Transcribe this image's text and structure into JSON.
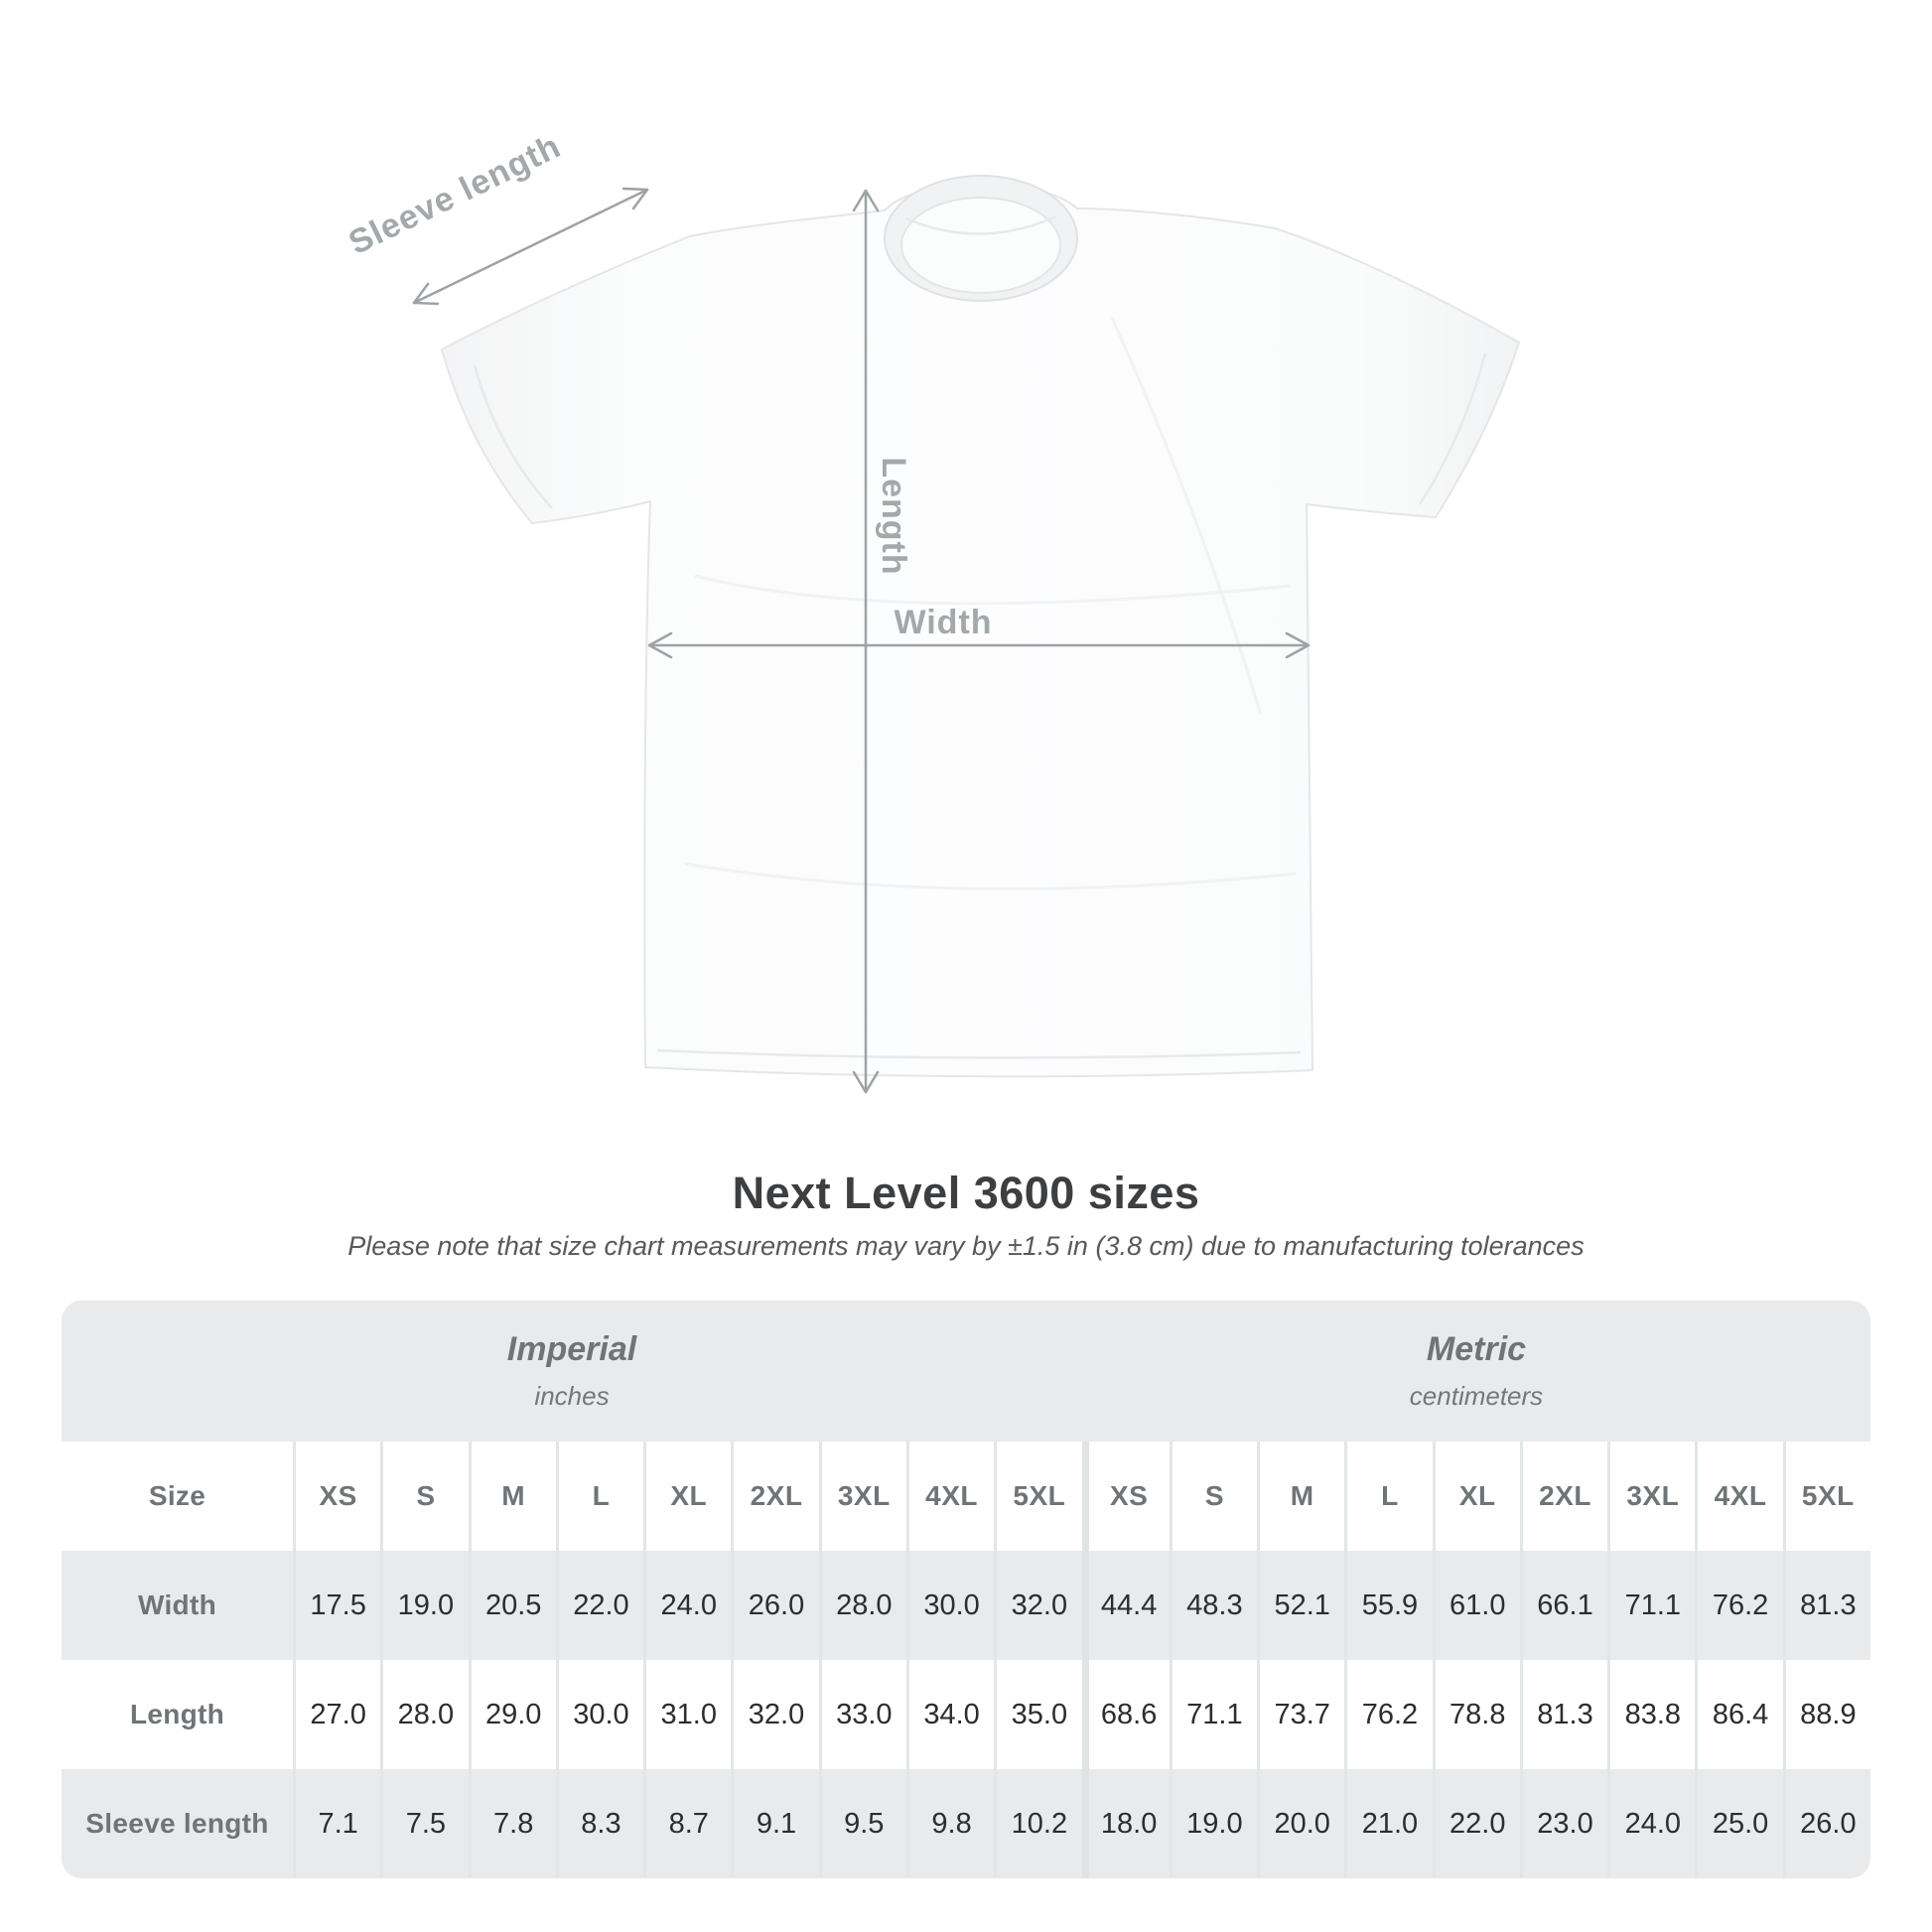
{
  "title": "Next Level 3600 sizes",
  "subtitle": "Please note that size chart measurements may vary by ±1.5 in (3.8 cm) due to manufacturing tolerances",
  "diagram": {
    "labels": {
      "sleeve_length": "Sleeve length",
      "length": "Length",
      "width": "Width"
    }
  },
  "table": {
    "unit_groups": [
      {
        "label": "Imperial",
        "sublabel": "inches"
      },
      {
        "label": "Metric",
        "sublabel": "centimeters"
      }
    ],
    "size_header": "Size",
    "sizes": [
      "XS",
      "S",
      "M",
      "L",
      "XL",
      "2XL",
      "3XL",
      "4XL",
      "5XL"
    ],
    "rows": [
      {
        "label": "Width",
        "imperial": [
          "17.5",
          "19.0",
          "20.5",
          "22.0",
          "24.0",
          "26.0",
          "28.0",
          "30.0",
          "32.0"
        ],
        "metric": [
          "44.4",
          "48.3",
          "52.1",
          "55.9",
          "61.0",
          "66.1",
          "71.1",
          "76.2",
          "81.3"
        ]
      },
      {
        "label": "Length",
        "imperial": [
          "27.0",
          "28.0",
          "29.0",
          "30.0",
          "31.0",
          "32.0",
          "33.0",
          "34.0",
          "35.0"
        ],
        "metric": [
          "68.6",
          "71.1",
          "73.7",
          "76.2",
          "78.8",
          "81.3",
          "83.8",
          "86.4",
          "88.9"
        ]
      },
      {
        "label": "Sleeve length",
        "imperial": [
          "7.1",
          "7.5",
          "7.8",
          "8.3",
          "8.7",
          "9.1",
          "9.5",
          "9.8",
          "10.2"
        ],
        "metric": [
          "18.0",
          "19.0",
          "20.0",
          "21.0",
          "22.0",
          "23.0",
          "24.0",
          "25.0",
          "26.0"
        ]
      }
    ]
  },
  "chart_data": {
    "type": "table",
    "title": "Next Level 3600 sizes",
    "columns": [
      "Size",
      "XS",
      "S",
      "M",
      "L",
      "XL",
      "2XL",
      "3XL",
      "4XL",
      "5XL"
    ],
    "imperial_inches": {
      "Width": [
        17.5,
        19.0,
        20.5,
        22.0,
        24.0,
        26.0,
        28.0,
        30.0,
        32.0
      ],
      "Length": [
        27.0,
        28.0,
        29.0,
        30.0,
        31.0,
        32.0,
        33.0,
        34.0,
        35.0
      ],
      "Sleeve length": [
        7.1,
        7.5,
        7.8,
        8.3,
        8.7,
        9.1,
        9.5,
        9.8,
        10.2
      ]
    },
    "metric_centimeters": {
      "Width": [
        44.4,
        48.3,
        52.1,
        55.9,
        61.0,
        66.1,
        71.1,
        76.2,
        81.3
      ],
      "Length": [
        68.6,
        71.1,
        73.7,
        76.2,
        78.8,
        81.3,
        83.8,
        86.4,
        88.9
      ],
      "Sleeve length": [
        18.0,
        19.0,
        20.0,
        21.0,
        22.0,
        23.0,
        24.0,
        25.0,
        26.0
      ]
    }
  },
  "colors": {
    "table_background": "#e9eaeb",
    "row_white": "#ffffff",
    "separator": "#e3e6e6",
    "header_text": "#6f7477",
    "value_text": "#2b2d2e",
    "arrow": "#9da2a5",
    "dim_label": "#a3a8ab",
    "title_text": "#3c3e40"
  }
}
